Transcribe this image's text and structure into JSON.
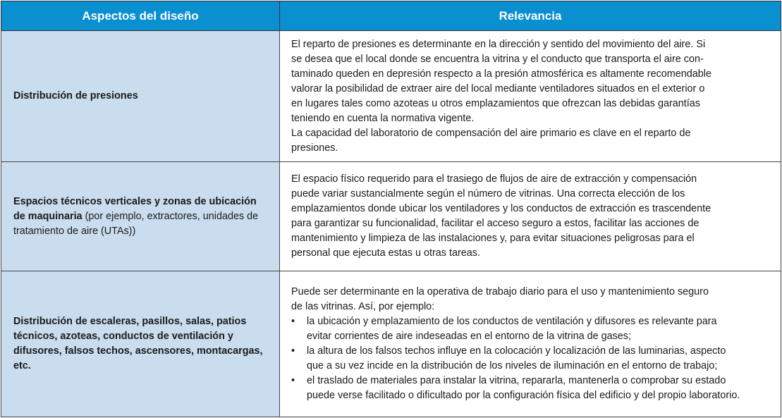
{
  "header": {
    "col1": "Aspectos del diseño",
    "col2": "Relevancia"
  },
  "rows": [
    {
      "aspect": "Distribución de presiones",
      "lines": [
        "El reparto de presiones es determinante en la dirección y sentido del movimiento del aire. Si",
        "se desea que el local donde se encuentra la vitrina y el conducto que transporta el aire con-",
        "taminado queden en depresión respecto a la presión atmosférica es altamente recomendable",
        "valorar la posibilidad de extraer aire del local mediante ventiladores situados en el exterior o",
        "en lugares tales como azoteas u otros emplazamientos que ofrezcan las debidas garantías",
        "teniendo en cuenta la normativa vigente.",
        "La capacidad del laboratorio de compensación del aire primario es clave en el reparto de",
        "presiones."
      ]
    },
    {
      "aspect_bold": "Espacios técnicos verticales y zonas de ubicación de maquinaria",
      "aspect_normal": " (por ejemplo, extractores, unidades de tratamiento de aire (UTAs))",
      "lines": [
        "El espacio físico requerido para el trasiego de flujos de aire de extracción y compensación",
        "puede variar sustancialmente según el número de vitrinas. Una correcta elección de los",
        "emplazamientos donde ubicar los ventiladores y los conductos de extracción es trascendente",
        "para garantizar su funcionalidad, facilitar el acceso seguro a estos, facilitar las acciones de",
        "mantenimiento y limpieza de las instalaciones y, para evitar situaciones peligrosas para el",
        "personal que ejecuta estas u otras tareas."
      ]
    },
    {
      "aspect": "Distribución de escaleras, pasillos, salas, patios técnicos, azoteas, conductos de ventilación y difusores, falsos techos, ascensores, montacargas, etc.",
      "lines": [
        "Puede ser determinante en la operativa de trabajo diario para el uso y mantenimiento seguro",
        "de las vitrinas. Así, por ejemplo:"
      ],
      "bullets": [
        [
          "la ubicación y emplazamiento de los conductos de ventilación y difusores es relevante para",
          "evitar corrientes de aire indeseadas en el entorno de la vitrina de gases;"
        ],
        [
          "la altura de los falsos techos influye en la colocación y localización de las luminarias, aspecto",
          "que a su vez incide en la distribución de los niveles de iluminación en el entorno de trabajo;"
        ],
        [
          "el traslado de materiales para instalar la vitrina, repararla, mantenerla o comprobar su estado",
          "puede verse facilitado o dificultado por la configuración física del edificio y del propio laboratorio."
        ]
      ],
      "bullet_symbol": "•"
    }
  ]
}
